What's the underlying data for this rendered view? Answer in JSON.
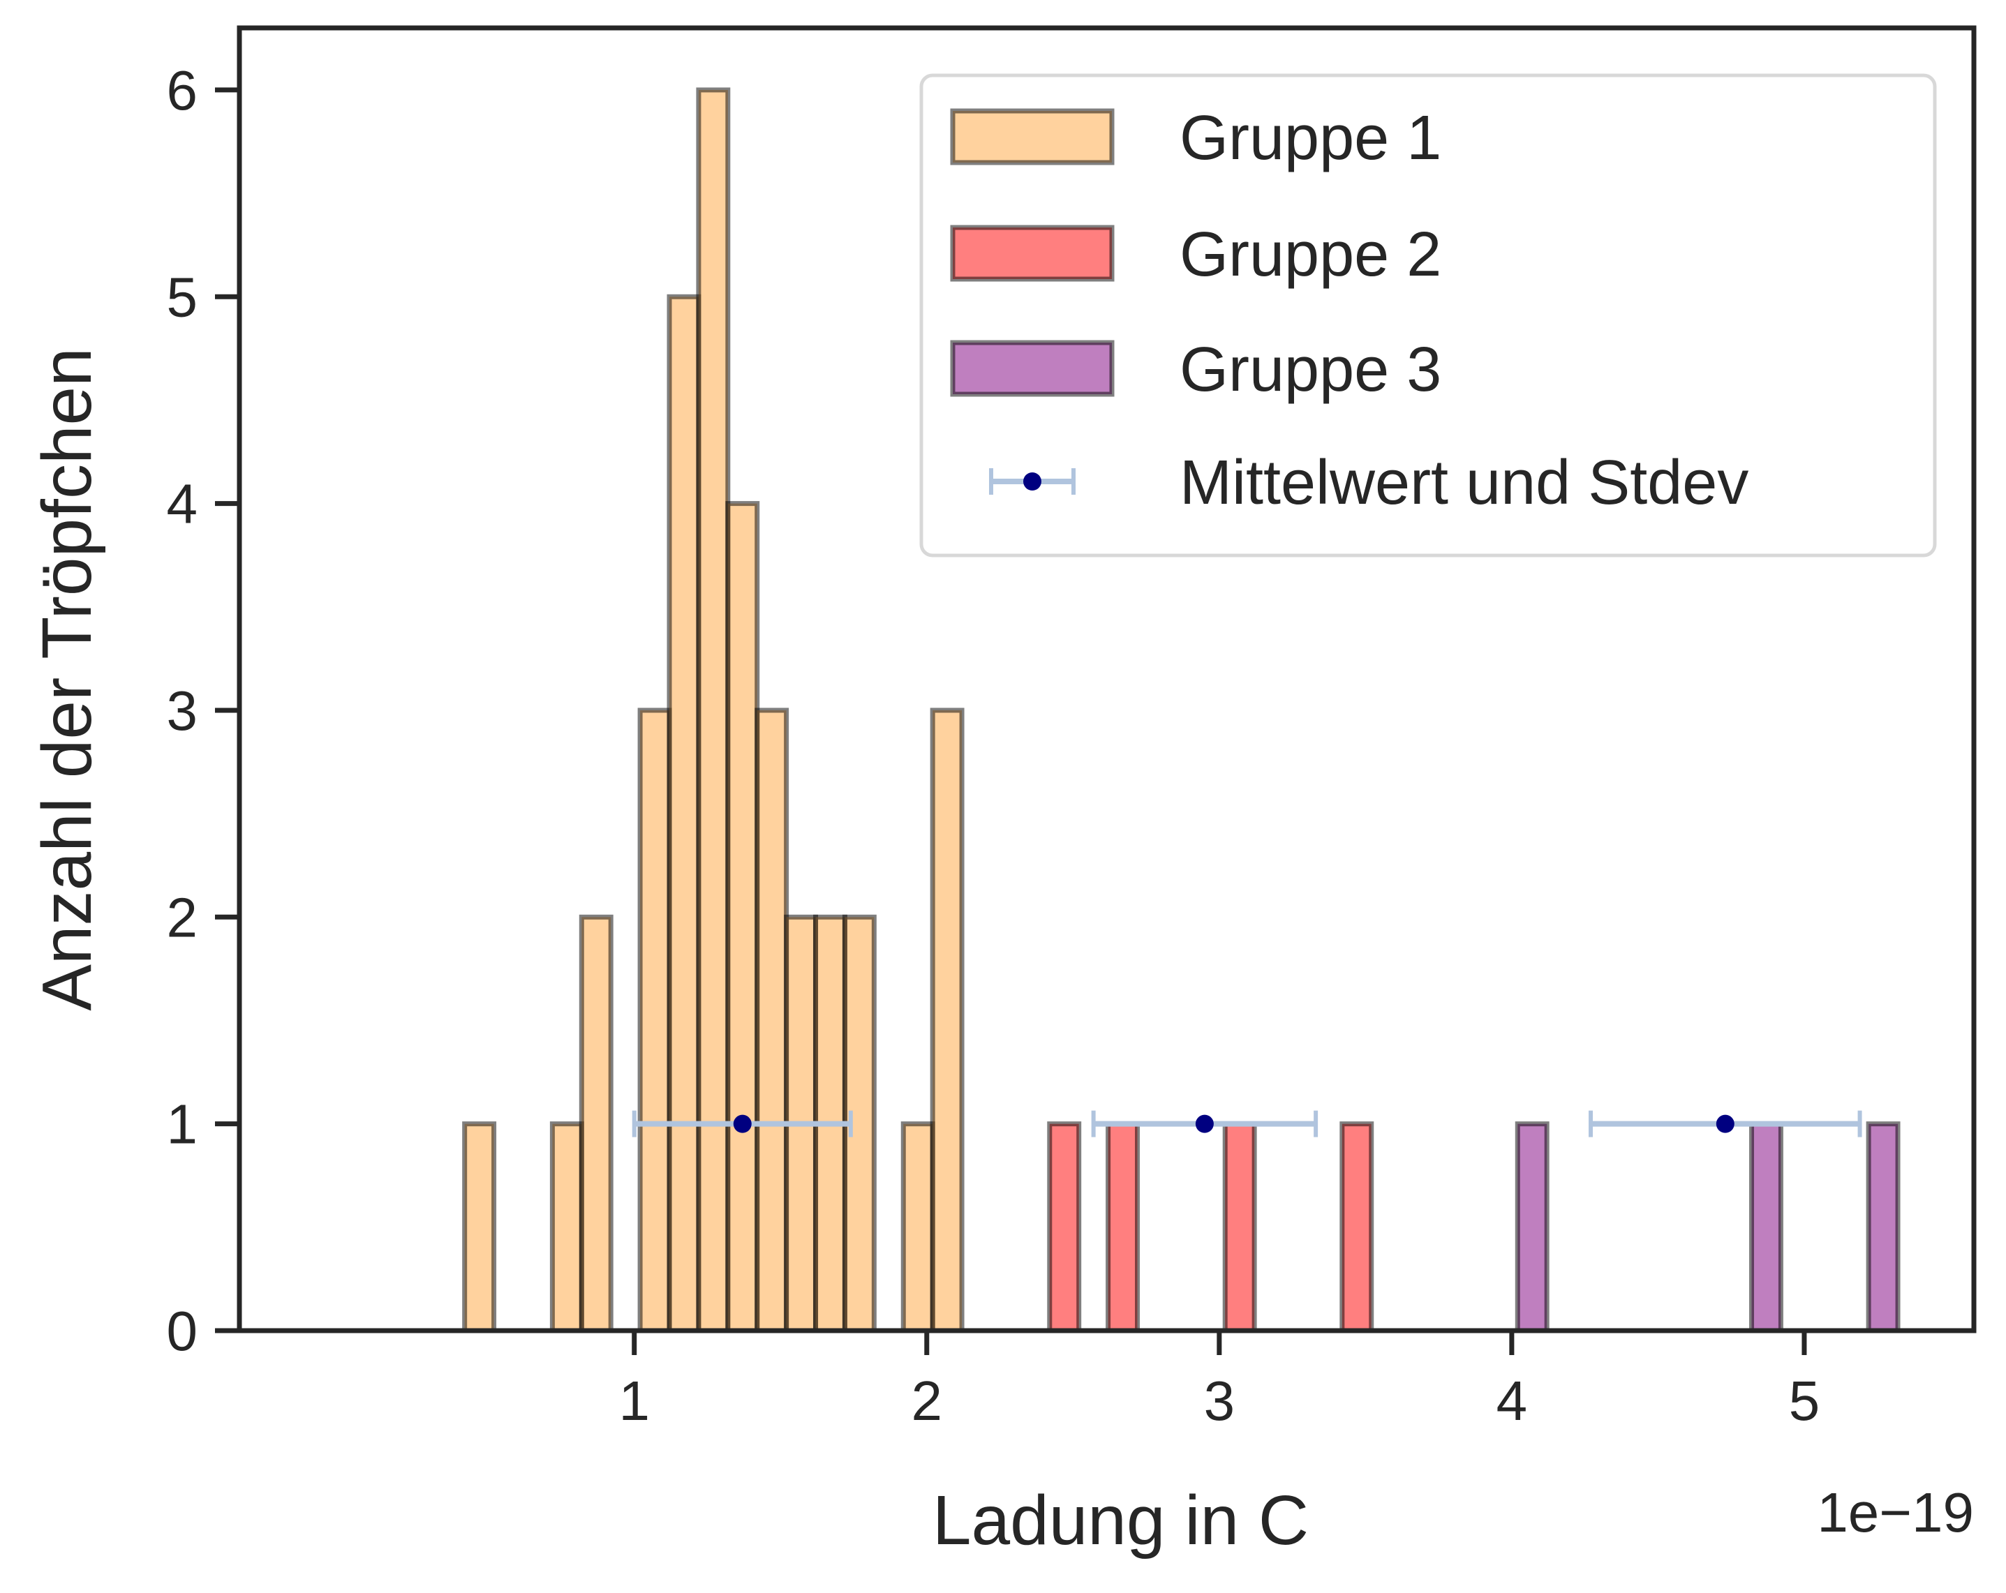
{
  "chart_data": {
    "type": "bar",
    "xlabel": "Ladung in C",
    "ylabel": "Anzahl der Tröpfchen",
    "x_offset_label": "1e−19",
    "xlim": [
      -0.35,
      5.58
    ],
    "ylim": [
      0,
      6.3
    ],
    "xticks": [
      {
        "value": 1,
        "label": "1"
      },
      {
        "value": 2,
        "label": "2"
      },
      {
        "value": 3,
        "label": "3"
      },
      {
        "value": 4,
        "label": "4"
      },
      {
        "value": 5,
        "label": "5"
      }
    ],
    "yticks": [
      {
        "value": 0,
        "label": "0"
      },
      {
        "value": 1,
        "label": "1"
      },
      {
        "value": 2,
        "label": "2"
      },
      {
        "value": 3,
        "label": "3"
      },
      {
        "value": 4,
        "label": "4"
      },
      {
        "value": 5,
        "label": "5"
      },
      {
        "value": 6,
        "label": "6"
      }
    ],
    "grid": false,
    "legend_position": "top-right",
    "bar_width": 0.1,
    "series": [
      {
        "name": "Gruppe 1",
        "color": "#ffa63e",
        "bars": [
          {
            "x": 0.47,
            "count": 1
          },
          {
            "x": 0.77,
            "count": 1
          },
          {
            "x": 0.87,
            "count": 2
          },
          {
            "x": 1.07,
            "count": 3
          },
          {
            "x": 1.17,
            "count": 5
          },
          {
            "x": 1.27,
            "count": 6
          },
          {
            "x": 1.37,
            "count": 4
          },
          {
            "x": 1.47,
            "count": 3
          },
          {
            "x": 1.57,
            "count": 2
          },
          {
            "x": 1.67,
            "count": 2
          },
          {
            "x": 1.77,
            "count": 2
          },
          {
            "x": 1.97,
            "count": 1
          },
          {
            "x": 2.07,
            "count": 3
          }
        ]
      },
      {
        "name": "Gruppe 2",
        "color": "#ff0000",
        "bars": [
          {
            "x": 2.47,
            "count": 1
          },
          {
            "x": 2.67,
            "count": 1
          },
          {
            "x": 3.07,
            "count": 1
          },
          {
            "x": 3.47,
            "count": 1
          }
        ]
      },
      {
        "name": "Gruppe 3",
        "color": "#800080",
        "bars": [
          {
            "x": 4.07,
            "count": 1
          },
          {
            "x": 4.87,
            "count": 1
          },
          {
            "x": 5.27,
            "count": 1
          }
        ]
      }
    ],
    "errorbars": {
      "name": "Mittelwert und Stdev",
      "marker_color": "#000080",
      "line_color": "#b0c4de",
      "points": [
        {
          "mean": 1.37,
          "stdev": 0.37,
          "y": 1
        },
        {
          "mean": 2.95,
          "stdev": 0.38,
          "y": 1
        },
        {
          "mean": 4.73,
          "stdev": 0.46,
          "y": 1
        }
      ]
    }
  }
}
